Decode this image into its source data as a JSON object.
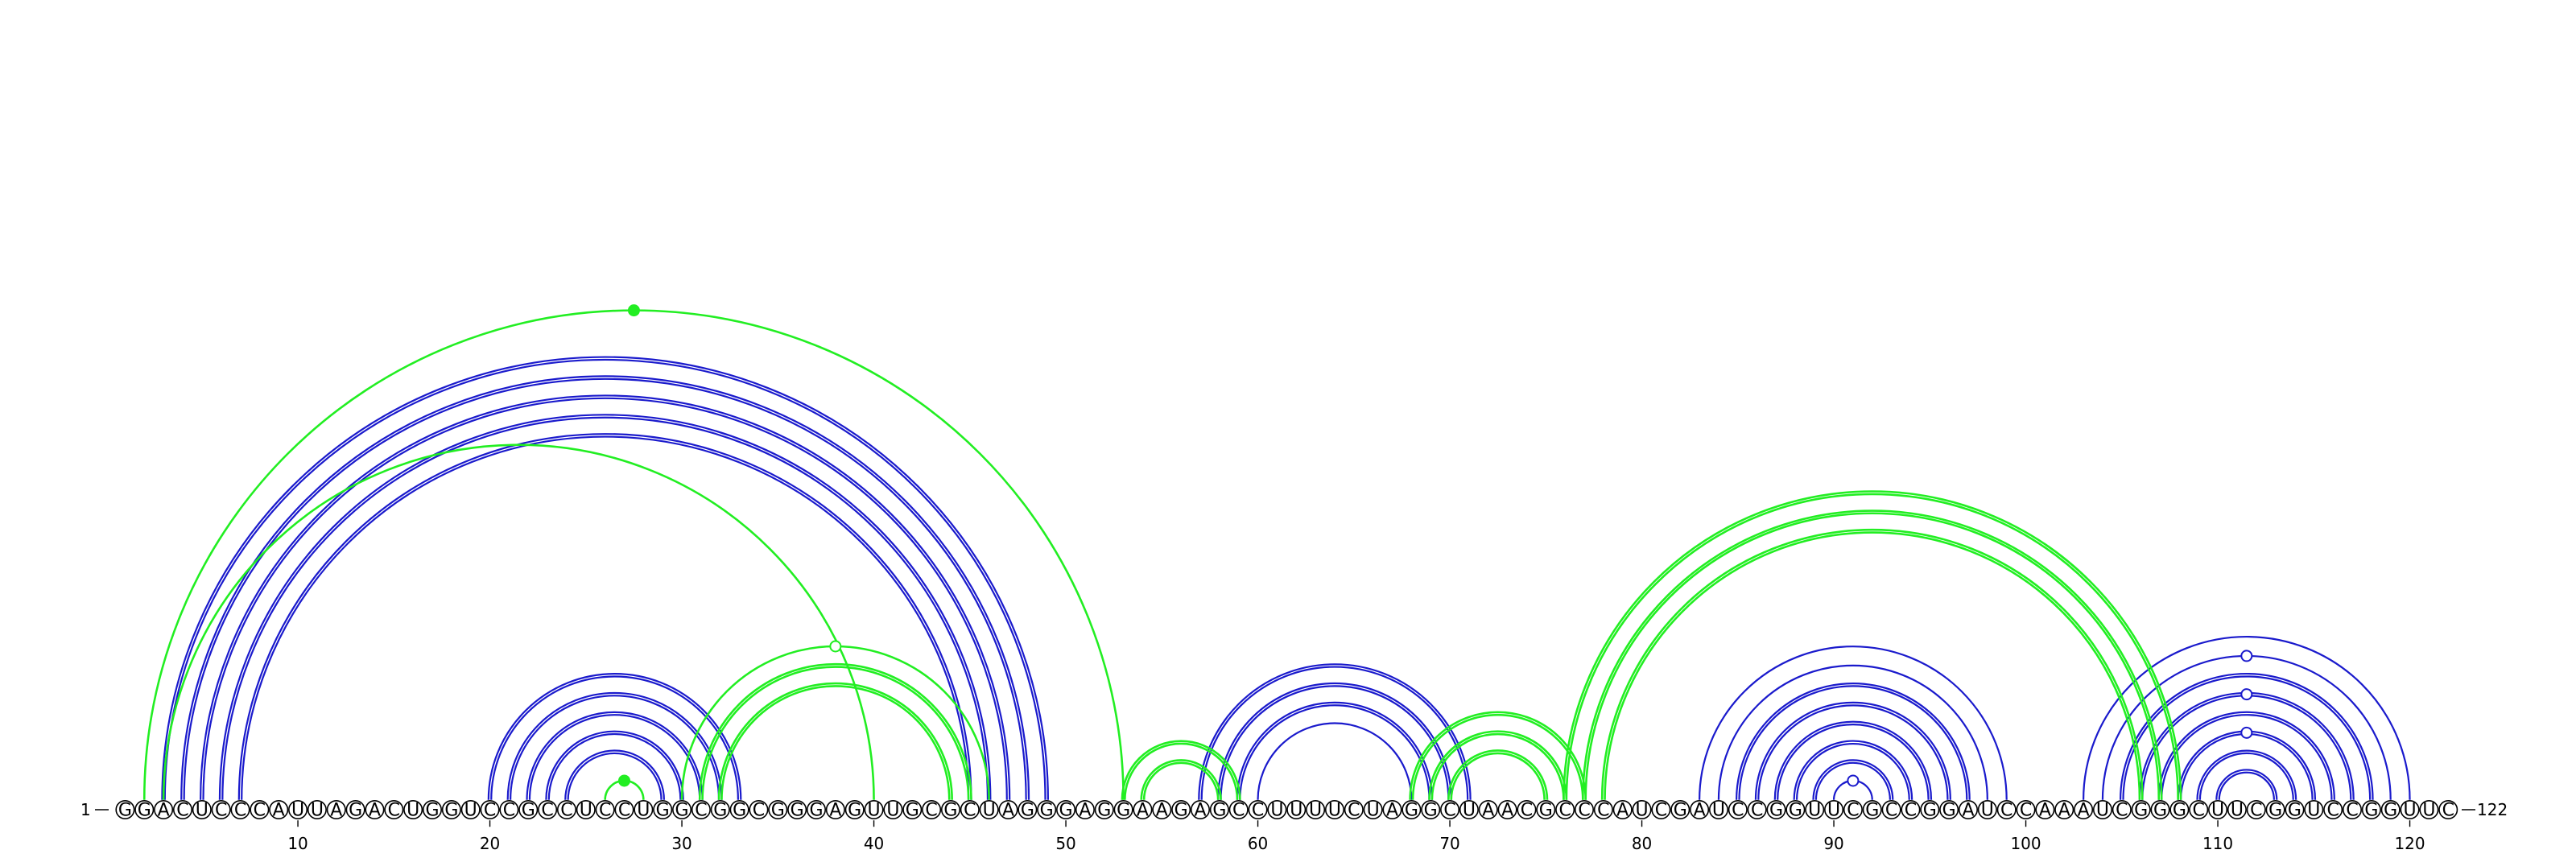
{
  "sequence": "GGACUCCCAUUAGACUGGUCCGCCUCCUGGCGGCGGGAGUUGCGCUAGGGAGGAAGAGCCUUUUCUAGGCUAACGCCCAUCGAUCCGGUUCGCCGGAUCCAAAUCGGGCUUCGGUCCGGUUC",
  "start_label": "1",
  "end_label": "122",
  "ticks": [
    10,
    20,
    30,
    40,
    50,
    60,
    70,
    80,
    90,
    100,
    110,
    120
  ],
  "colors": {
    "blue": "#1a1acc",
    "green": "#22ee22"
  },
  "arcs": [
    {
      "i": 3,
      "j": 49,
      "color": "blue",
      "lines": 2
    },
    {
      "i": 4,
      "j": 48,
      "color": "blue",
      "lines": 2
    },
    {
      "i": 5,
      "j": 47,
      "color": "blue",
      "lines": 2
    },
    {
      "i": 6,
      "j": 46,
      "color": "blue",
      "lines": 2
    },
    {
      "i": 7,
      "j": 45,
      "color": "blue",
      "lines": 2
    },
    {
      "i": 20,
      "j": 33,
      "color": "blue",
      "lines": 2
    },
    {
      "i": 21,
      "j": 32,
      "color": "blue",
      "lines": 2
    },
    {
      "i": 22,
      "j": 31,
      "color": "blue",
      "lines": 2
    },
    {
      "i": 23,
      "j": 30,
      "color": "blue",
      "lines": 2
    },
    {
      "i": 24,
      "j": 29,
      "color": "blue",
      "lines": 2
    },
    {
      "i": 57,
      "j": 71,
      "color": "blue",
      "lines": 2
    },
    {
      "i": 58,
      "j": 70,
      "color": "blue",
      "lines": 2
    },
    {
      "i": 59,
      "j": 69,
      "color": "blue",
      "lines": 2
    },
    {
      "i": 60,
      "j": 68,
      "color": "blue",
      "lines": 1
    },
    {
      "i": 83,
      "j": 99,
      "color": "blue",
      "lines": 1
    },
    {
      "i": 84,
      "j": 98,
      "color": "blue",
      "lines": 1
    },
    {
      "i": 85,
      "j": 97,
      "color": "blue",
      "lines": 2
    },
    {
      "i": 86,
      "j": 96,
      "color": "blue",
      "lines": 2
    },
    {
      "i": 87,
      "j": 95,
      "color": "blue",
      "lines": 2
    },
    {
      "i": 88,
      "j": 94,
      "color": "blue",
      "lines": 2
    },
    {
      "i": 89,
      "j": 93,
      "color": "blue",
      "lines": 2
    },
    {
      "i": 90,
      "j": 92,
      "color": "blue",
      "lines": 1
    },
    {
      "i": 103,
      "j": 120,
      "color": "blue",
      "lines": 1
    },
    {
      "i": 104,
      "j": 119,
      "color": "blue",
      "lines": 1
    },
    {
      "i": 105,
      "j": 118,
      "color": "blue",
      "lines": 2
    },
    {
      "i": 106,
      "j": 117,
      "color": "blue",
      "lines": 2
    },
    {
      "i": 107,
      "j": 116,
      "color": "blue",
      "lines": 2
    },
    {
      "i": 108,
      "j": 115,
      "color": "blue",
      "lines": 2
    },
    {
      "i": 109,
      "j": 114,
      "color": "blue",
      "lines": 2
    },
    {
      "i": 110,
      "j": 113,
      "color": "blue",
      "lines": 2
    },
    {
      "i": 2,
      "j": 53,
      "color": "green",
      "lines": 1
    },
    {
      "i": 3,
      "j": 40,
      "color": "green",
      "lines": 1
    },
    {
      "i": 26,
      "j": 28,
      "color": "green",
      "lines": 1
    },
    {
      "i": 30,
      "j": 46,
      "color": "green",
      "lines": 1
    },
    {
      "i": 31,
      "j": 45,
      "color": "green",
      "lines": 2
    },
    {
      "i": 32,
      "j": 44,
      "color": "green",
      "lines": 2
    },
    {
      "i": 53,
      "j": 59,
      "color": "green",
      "lines": 2
    },
    {
      "i": 54,
      "j": 58,
      "color": "green",
      "lines": 2
    },
    {
      "i": 68,
      "j": 77,
      "color": "green",
      "lines": 2
    },
    {
      "i": 69,
      "j": 76,
      "color": "green",
      "lines": 2
    },
    {
      "i": 70,
      "j": 75,
      "color": "green",
      "lines": 2
    },
    {
      "i": 76,
      "j": 108,
      "color": "green",
      "lines": 2
    },
    {
      "i": 77,
      "j": 107,
      "color": "green",
      "lines": 2
    },
    {
      "i": 78,
      "j": 106,
      "color": "green",
      "lines": 2
    }
  ],
  "markers": [
    {
      "arc": "2-53",
      "fill": "solid"
    },
    {
      "arc": "26-28",
      "fill": "solid"
    },
    {
      "arc": "30-46",
      "fill": "open"
    },
    {
      "arc": "90-92",
      "fill": "open"
    },
    {
      "arc": "108-115",
      "fill": "open"
    },
    {
      "arc": "106-117",
      "fill": "open"
    },
    {
      "arc": "104-119",
      "fill": "open"
    }
  ]
}
